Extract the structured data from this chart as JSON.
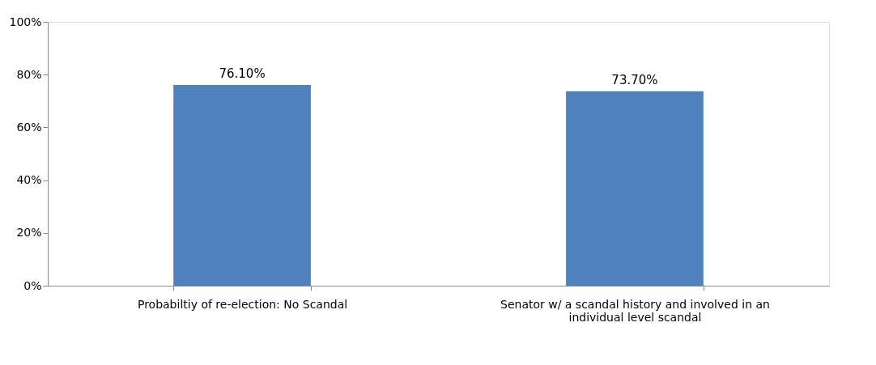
{
  "chart_data": {
    "type": "bar",
    "categories": [
      "Probabiltiy of re-election: No Scandal",
      "Senator w/ a scandal history and involved in an individual level scandal"
    ],
    "values": [
      76.1,
      73.7
    ],
    "value_labels": [
      "76.10%",
      "73.70%"
    ],
    "color": "#4f81bd",
    "ylim": [
      0,
      100
    ],
    "yticks": [
      {
        "value": 0,
        "label": "0%"
      },
      {
        "value": 20,
        "label": "20%"
      },
      {
        "value": 40,
        "label": "40%"
      },
      {
        "value": 60,
        "label": "60%"
      },
      {
        "value": 80,
        "label": "80%"
      },
      {
        "value": 100,
        "label": "100%"
      }
    ],
    "grid": false
  }
}
